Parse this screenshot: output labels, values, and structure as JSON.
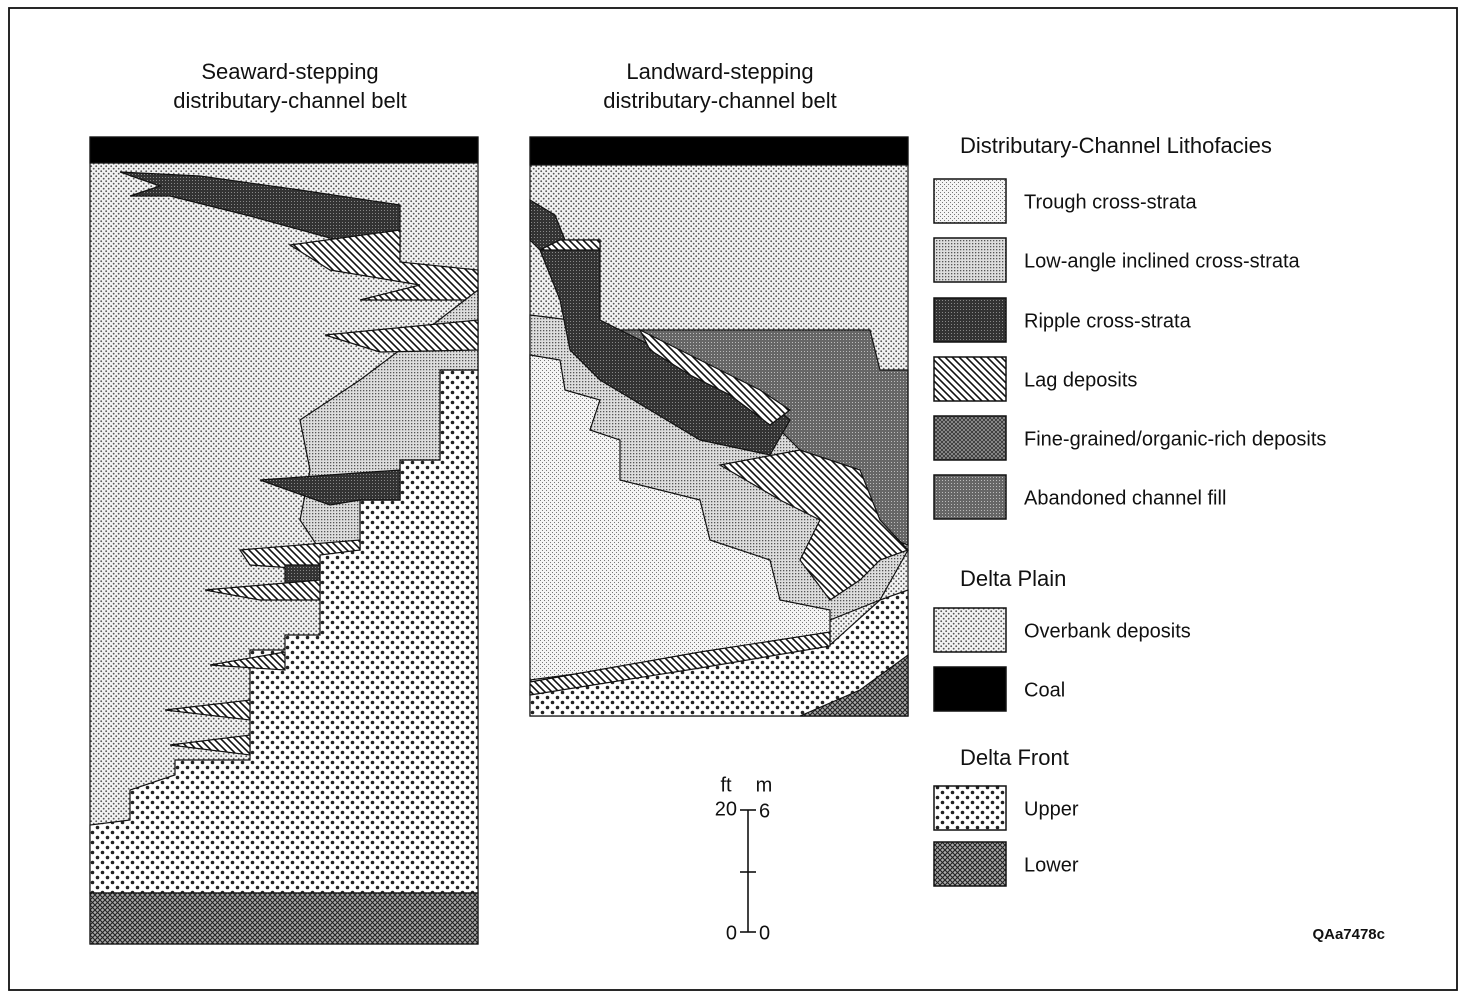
{
  "panels": [
    {
      "title_lines": [
        "Seaward-stepping",
        "distributary-channel belt"
      ]
    },
    {
      "title_lines": [
        "Landward-stepping",
        "distributary-channel belt"
      ]
    }
  ],
  "legend": {
    "sections": [
      {
        "title": "Distributary-Channel Lithofacies",
        "items": [
          "Trough cross-strata",
          "Low-angle inclined cross-strata",
          "Ripple cross-strata",
          "Lag deposits",
          "Fine-grained/organic-rich deposits",
          "Abandoned channel fill"
        ]
      },
      {
        "title": "Delta Plain",
        "items": [
          "Overbank deposits",
          "Coal"
        ]
      },
      {
        "title": "Delta Front",
        "items": [
          "Upper",
          "Lower"
        ]
      }
    ]
  },
  "scale": {
    "unit_left": "ft",
    "unit_right": "m",
    "top_left": "20",
    "top_right": "6",
    "bottom_left": "0",
    "bottom_right": "0"
  },
  "figure_id": "QAa7478c"
}
